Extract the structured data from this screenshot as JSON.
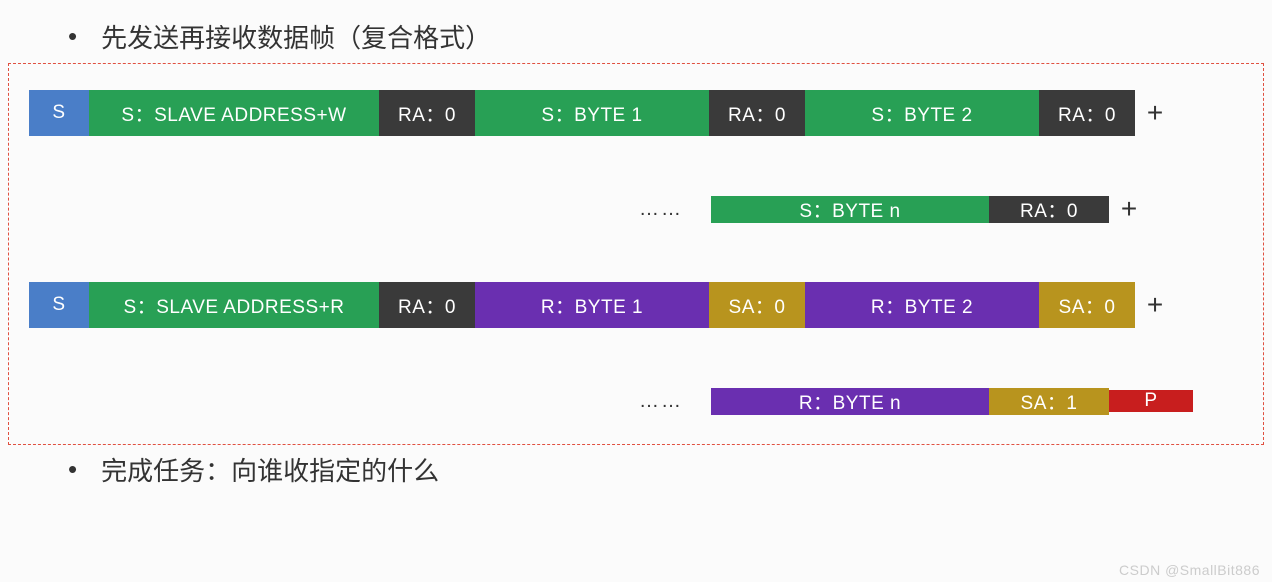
{
  "title_top": "先发送再接收数据帧（复合格式）",
  "title_bottom": "完成任务：向谁收指定的什么",
  "watermark": "CSDN @SmallBit886",
  "colors": {
    "blue": "#4a7ec8",
    "green": "#28a055",
    "dark": "#3a3a3a",
    "purple": "#6a2fb0",
    "olive": "#b8941e",
    "red": "#c81e1e",
    "text": "#ffffff",
    "border": "#e05040",
    "bg": "#fbfbfb"
  },
  "segment_widths": {
    "S": 60,
    "ADDR": 290,
    "ACK": 96,
    "BYTE": 234,
    "BYTE_n": 278,
    "ACK_n": 120,
    "P": 84,
    "ellipsis_pad_1": 582,
    "ellipsis_pad_2": 582,
    "ellipsis_w": 100
  },
  "row1": [
    {
      "label": "S",
      "color": "blue",
      "w": "S"
    },
    {
      "label": "S：SLAVE ADDRESS+W",
      "color": "green",
      "w": "ADDR"
    },
    {
      "label": "RA：0",
      "color": "dark",
      "w": "ACK"
    },
    {
      "label": "S：BYTE 1",
      "color": "green",
      "w": "BYTE"
    },
    {
      "label": "RA：0",
      "color": "dark",
      "w": "ACK"
    },
    {
      "label": "S：BYTE 2",
      "color": "green",
      "w": "BYTE"
    },
    {
      "label": "RA：0",
      "color": "dark",
      "w": "ACK"
    }
  ],
  "row1_plus": "+",
  "row2_ellipsis": "……",
  "row2": [
    {
      "label": "S：BYTE n",
      "color": "green",
      "w": "BYTE_n"
    },
    {
      "label": "RA：0",
      "color": "dark",
      "w": "ACK_n"
    }
  ],
  "row2_plus": "+",
  "row3": [
    {
      "label": "S",
      "color": "blue",
      "w": "S"
    },
    {
      "label": "S：SLAVE ADDRESS+R",
      "color": "green",
      "w": "ADDR"
    },
    {
      "label": "RA：0",
      "color": "dark",
      "w": "ACK"
    },
    {
      "label": "R：BYTE 1",
      "color": "purple",
      "w": "BYTE"
    },
    {
      "label": "SA：0",
      "color": "olive",
      "w": "ACK"
    },
    {
      "label": "R：BYTE 2",
      "color": "purple",
      "w": "BYTE"
    },
    {
      "label": "SA：0",
      "color": "olive",
      "w": "ACK"
    }
  ],
  "row3_plus": "+",
  "row4_ellipsis": "……",
  "row4": [
    {
      "label": "R：BYTE n",
      "color": "purple",
      "w": "BYTE_n"
    },
    {
      "label": "SA：1",
      "color": "olive",
      "w": "ACK_n"
    },
    {
      "label": "P",
      "color": "red",
      "w": "P"
    }
  ]
}
